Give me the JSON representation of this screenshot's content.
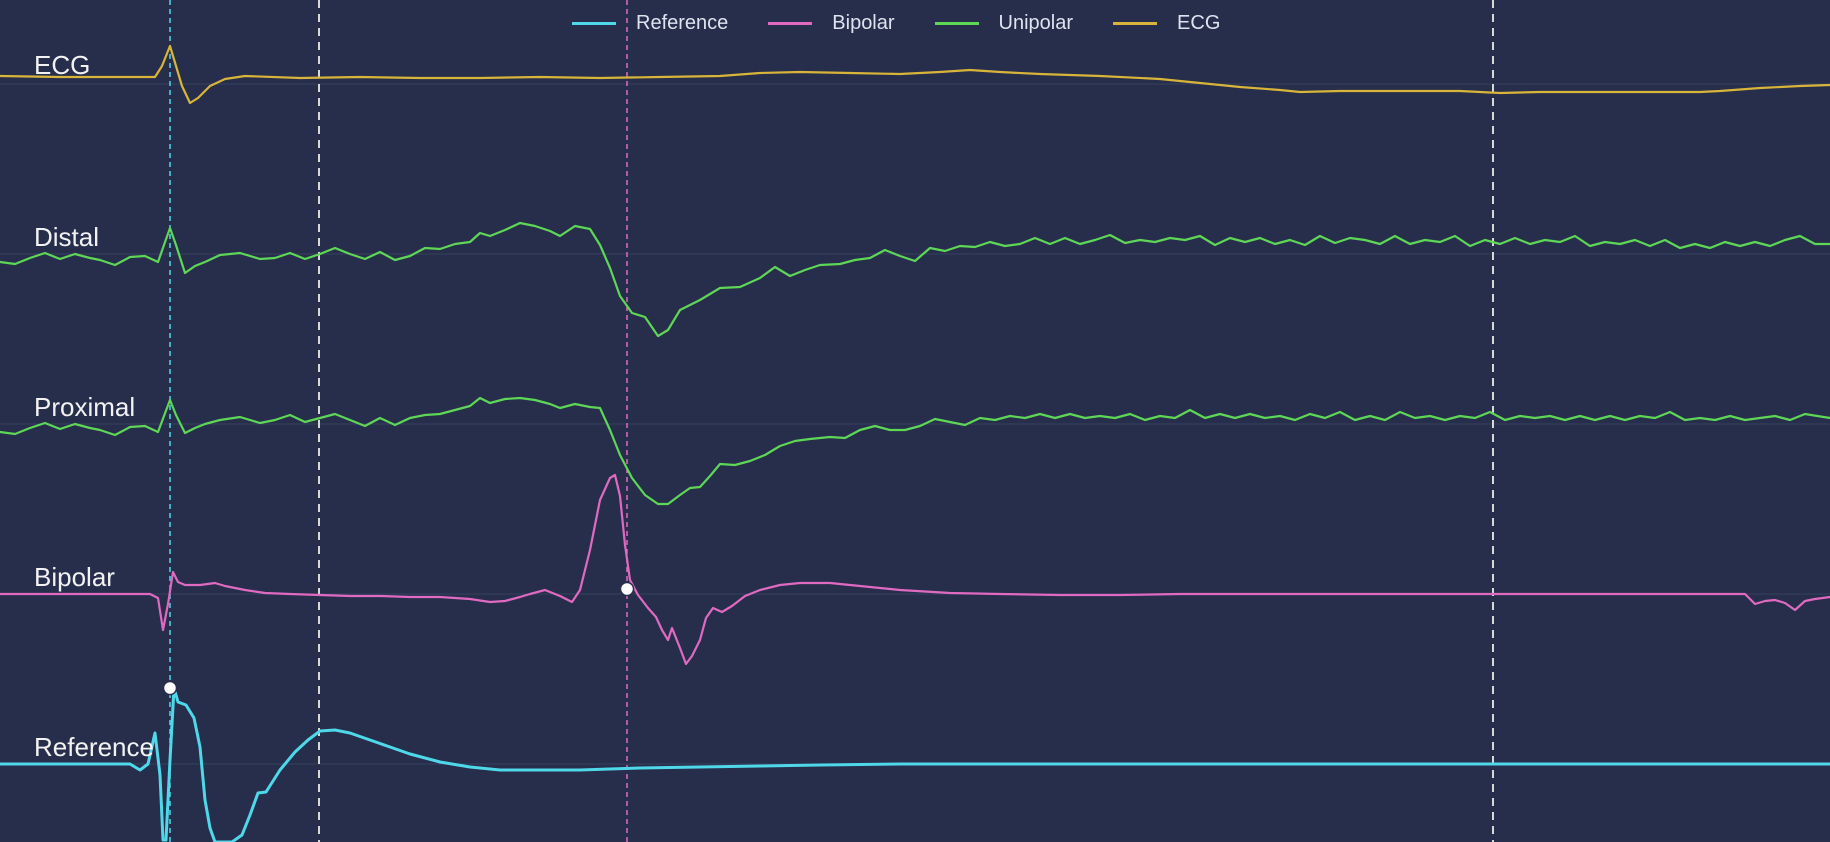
{
  "legend": [
    {
      "label": "Reference",
      "color": "#4fd8ea"
    },
    {
      "label": "Bipolar",
      "color": "#e06ac1"
    },
    {
      "label": "Unipolar",
      "color": "#5ed656"
    },
    {
      "label": "ECG",
      "color": "#d9b43a"
    }
  ],
  "channels": [
    {
      "key": "ecg",
      "label": "ECG",
      "color": "#d9b43a"
    },
    {
      "key": "distal",
      "label": "Distal",
      "color": "#5ed656"
    },
    {
      "key": "proximal",
      "label": "Proximal",
      "color": "#5ed656"
    },
    {
      "key": "bipolar",
      "label": "Bipolar",
      "color": "#e06ac1"
    },
    {
      "key": "reference",
      "label": "Reference",
      "color": "#4fd8ea"
    }
  ],
  "colors": {
    "background": "#262e4b",
    "gridline": "#36415f",
    "marker_dashed": "#d8d8d8",
    "marker_reference": "#4fd8ea",
    "marker_bipolar": "#e06ac1"
  }
}
